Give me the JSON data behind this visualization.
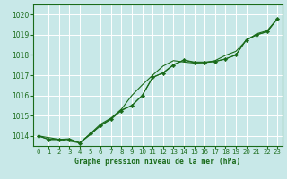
{
  "title": "Graphe pression niveau de la mer (hPa)",
  "bg_color": "#c8e8e8",
  "grid_color": "#ffffff",
  "line_color": "#1a6b1a",
  "xlim": [
    -0.5,
    23.5
  ],
  "ylim": [
    1013.5,
    1020.5
  ],
  "yticks": [
    1014,
    1015,
    1016,
    1017,
    1018,
    1019,
    1020
  ],
  "xticks": [
    0,
    1,
    2,
    3,
    4,
    5,
    6,
    7,
    8,
    9,
    10,
    11,
    12,
    13,
    14,
    15,
    16,
    17,
    18,
    19,
    20,
    21,
    22,
    23
  ],
  "series1_x": [
    0,
    1,
    2,
    3,
    4,
    5,
    6,
    7,
    8,
    9,
    10,
    11,
    12,
    13,
    14,
    15,
    16,
    17,
    18,
    19,
    20,
    21,
    22,
    23
  ],
  "series1_y": [
    1014.0,
    1013.82,
    1013.82,
    1013.82,
    1013.65,
    1014.1,
    1014.5,
    1014.82,
    1015.25,
    1015.5,
    1016.0,
    1016.9,
    1017.1,
    1017.5,
    1017.75,
    1017.62,
    1017.62,
    1017.68,
    1017.8,
    1018.0,
    1018.75,
    1019.0,
    1019.15,
    1019.8
  ],
  "series2_x": [
    0,
    1,
    2,
    3,
    4,
    5,
    6,
    7,
    8,
    9,
    10,
    11,
    12,
    13,
    14,
    15,
    16,
    17,
    18,
    19,
    20,
    21,
    22,
    23
  ],
  "series2_y": [
    1014.0,
    1013.82,
    1013.82,
    1013.85,
    1013.65,
    1014.1,
    1014.58,
    1014.88,
    1015.32,
    1016.0,
    1016.52,
    1017.0,
    1017.45,
    1017.72,
    1017.65,
    1017.6,
    1017.62,
    1017.72,
    1017.98,
    1018.18,
    1018.72,
    1019.05,
    1019.2,
    1019.8
  ],
  "series3_x": [
    0,
    4,
    5,
    6,
    7,
    8,
    9,
    10,
    11,
    12,
    13,
    14,
    15,
    16,
    17,
    18,
    19,
    20,
    21,
    22,
    23
  ],
  "series3_y": [
    1014.0,
    1013.65,
    1014.05,
    1014.52,
    1014.85,
    1015.28,
    1015.5,
    1016.0,
    1016.88,
    1017.12,
    1017.52,
    1017.75,
    1017.65,
    1017.65,
    1017.68,
    1017.8,
    1018.0,
    1018.75,
    1019.0,
    1019.15,
    1019.8
  ]
}
